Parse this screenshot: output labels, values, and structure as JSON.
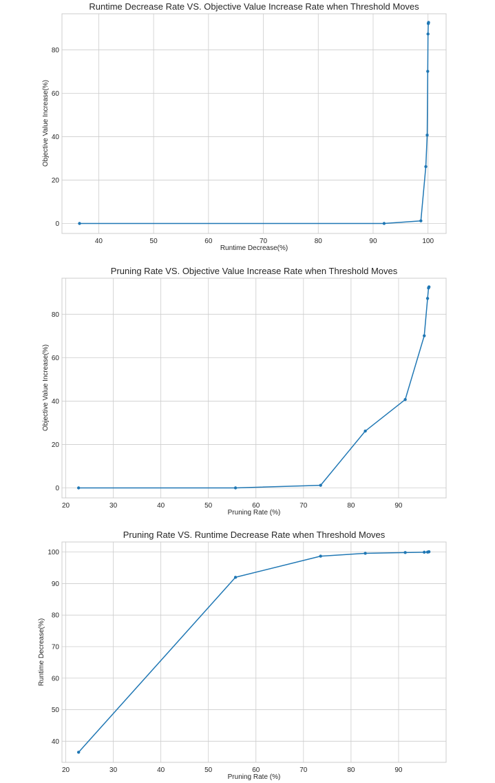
{
  "chart_data": [
    {
      "type": "line",
      "title": "Runtime Decrease Rate VS. Objective Value Increase Rate when Threshold Moves",
      "xlabel": "Runtime Decrease(%)",
      "ylabel": "Objective Value Increase(%)",
      "xlim": [
        33.3,
        103.3
      ],
      "ylim": [
        -4.6,
        96.6
      ],
      "xticks": [
        40,
        50,
        60,
        70,
        80,
        90,
        100
      ],
      "yticks": [
        0,
        20,
        40,
        60,
        80
      ],
      "grid": true,
      "series": [
        {
          "color": "#1f77b4",
          "x": [
            36.5,
            92.0,
            98.7,
            99.6,
            99.85,
            99.95,
            100.0,
            100.05,
            100.1
          ],
          "y": [
            0.0,
            0.0,
            1.2,
            26.2,
            40.7,
            70.1,
            87.3,
            92.1,
            92.6
          ]
        }
      ]
    },
    {
      "type": "line",
      "title": "Pruning Rate VS. Objective Value Increase Rate when Threshold Moves",
      "xlabel": "Pruning Rate (%)",
      "ylabel": "Objective Value Increase(%)",
      "xlim": [
        19.2,
        100.0
      ],
      "ylim": [
        -4.6,
        96.6
      ],
      "xticks": [
        20,
        30,
        40,
        50,
        60,
        70,
        80,
        90
      ],
      "yticks": [
        0,
        20,
        40,
        60,
        80
      ],
      "grid": true,
      "series": [
        {
          "color": "#1f77b4",
          "x": [
            22.7,
            55.7,
            73.6,
            83.0,
            91.4,
            95.4,
            96.1,
            96.3,
            96.4
          ],
          "y": [
            0.0,
            0.0,
            1.2,
            26.2,
            40.7,
            70.1,
            87.3,
            92.1,
            92.6
          ]
        }
      ]
    },
    {
      "type": "line",
      "title": "Pruning Rate VS. Runtime Decrease Rate when Threshold Moves",
      "xlabel": "Pruning Rate (%)",
      "ylabel": "Runtime Decrease(%)",
      "xlim": [
        19.2,
        100.0
      ],
      "ylim": [
        33.3,
        103.2
      ],
      "xticks": [
        20,
        30,
        40,
        50,
        60,
        70,
        80,
        90
      ],
      "yticks": [
        40,
        50,
        60,
        70,
        80,
        90,
        100
      ],
      "grid": true,
      "series": [
        {
          "color": "#1f77b4",
          "x": [
            22.7,
            55.7,
            73.6,
            83.0,
            91.4,
            95.4,
            96.1,
            96.3,
            96.4
          ],
          "y": [
            36.5,
            92.0,
            98.7,
            99.6,
            99.85,
            99.95,
            100.0,
            100.05,
            100.1
          ]
        }
      ]
    }
  ]
}
